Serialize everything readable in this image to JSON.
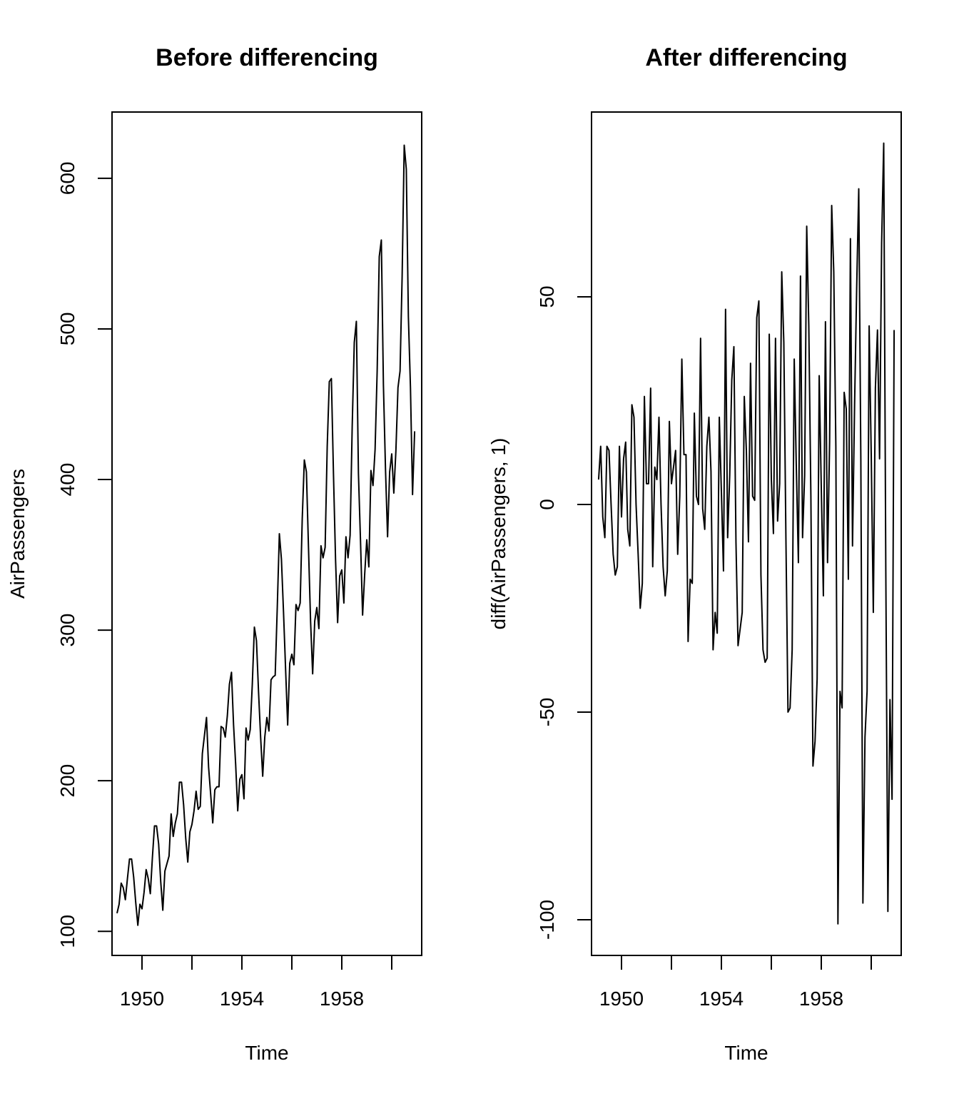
{
  "chart_data": [
    {
      "type": "line",
      "title": "Before differencing",
      "xlabel": "Time",
      "ylabel": "AirPassengers",
      "xlim": [
        1948.8,
        1961.2
      ],
      "ylim": [
        84,
        644
      ],
      "x_ticks": [
        1950,
        1952,
        1954,
        1956,
        1958,
        1960
      ],
      "x_tick_labels": [
        "1950",
        "",
        "1954",
        "",
        "1958",
        ""
      ],
      "y_ticks": [
        100,
        200,
        300,
        400,
        500,
        600
      ],
      "y_tick_labels": [
        "100",
        "200",
        "300",
        "400",
        "500",
        "600"
      ],
      "x_start": 1949,
      "frequency": 12,
      "values": [
        112,
        118,
        132,
        129,
        121,
        135,
        148,
        148,
        136,
        119,
        104,
        118,
        115,
        126,
        141,
        135,
        125,
        149,
        170,
        170,
        158,
        133,
        114,
        140,
        145,
        150,
        178,
        163,
        172,
        178,
        199,
        199,
        184,
        162,
        146,
        166,
        171,
        180,
        193,
        181,
        183,
        218,
        230,
        242,
        209,
        191,
        172,
        194,
        196,
        196,
        236,
        235,
        229,
        243,
        264,
        272,
        237,
        211,
        180,
        201,
        204,
        188,
        235,
        227,
        234,
        264,
        302,
        293,
        259,
        229,
        203,
        229,
        242,
        233,
        267,
        269,
        270,
        315,
        364,
        347,
        312,
        274,
        237,
        278,
        284,
        277,
        317,
        313,
        318,
        374,
        413,
        405,
        355,
        306,
        271,
        306,
        315,
        301,
        356,
        348,
        355,
        422,
        465,
        467,
        404,
        347,
        305,
        336,
        340,
        318,
        362,
        348,
        363,
        435,
        491,
        505,
        404,
        359,
        310,
        337,
        360,
        342,
        406,
        396,
        420,
        472,
        548,
        559,
        463,
        407,
        362,
        405,
        417,
        391,
        419,
        461,
        472,
        535,
        622,
        606,
        508,
        461,
        390,
        432
      ]
    },
    {
      "type": "line",
      "title": "After differencing",
      "xlabel": "Time",
      "ylabel": "diff(AirPassengers, 1)",
      "xlim": [
        1948.8,
        1961.2
      ],
      "ylim": [
        -108.6,
        94.5
      ],
      "x_ticks": [
        1950,
        1952,
        1954,
        1956,
        1958,
        1960
      ],
      "x_tick_labels": [
        "1950",
        "",
        "1954",
        "",
        "1958",
        ""
      ],
      "y_ticks": [
        -100,
        -50,
        0,
        50
      ],
      "y_tick_labels": [
        "-100",
        "-50",
        "0",
        "50"
      ],
      "x_start": 1949.0833,
      "frequency": 12,
      "values": [
        6,
        14,
        -3,
        -8,
        14,
        13,
        0,
        -12,
        -17,
        -15,
        14,
        -3,
        11,
        15,
        -6,
        -10,
        24,
        21,
        0,
        -12,
        -25,
        -19,
        26,
        5,
        5,
        28,
        -15,
        9,
        6,
        21,
        0,
        -15,
        -22,
        -16,
        20,
        5,
        9,
        13,
        -12,
        2,
        35,
        12,
        12,
        -33,
        -18,
        -19,
        22,
        2,
        0,
        40,
        -1,
        -6,
        14,
        21,
        8,
        -35,
        -26,
        -31,
        21,
        3,
        -16,
        47,
        -8,
        7,
        30,
        38,
        -9,
        -34,
        -30,
        -26,
        26,
        13,
        -9,
        34,
        2,
        1,
        45,
        49,
        -17,
        -35,
        -38,
        -37,
        41,
        6,
        -7,
        40,
        -4,
        5,
        56,
        39,
        -8,
        -50,
        -49,
        -35,
        35,
        9,
        -14,
        55,
        -8,
        7,
        67,
        43,
        2,
        -63,
        -57,
        -42,
        31,
        4,
        -22,
        44,
        -14,
        15,
        72,
        56,
        14,
        -101,
        -45,
        -49,
        27,
        23,
        -18,
        64,
        -10,
        24,
        52,
        76,
        11,
        -96,
        -56,
        -45,
        43,
        12,
        -26,
        28,
        42,
        11,
        63,
        87,
        -16,
        -98,
        -47,
        -71,
        42
      ]
    }
  ]
}
